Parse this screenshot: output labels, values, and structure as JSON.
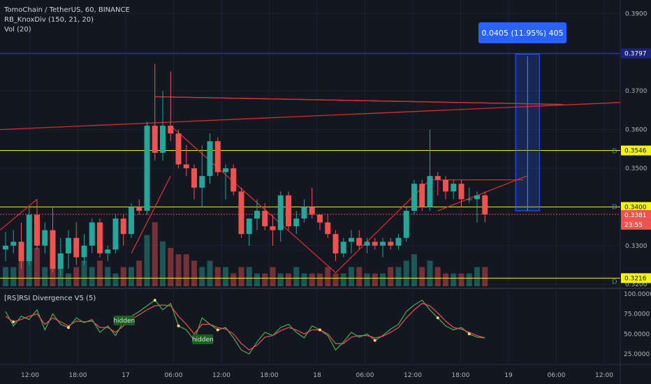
{
  "header": {
    "title": "TomoChain / TetherUS, 60, BINANCE",
    "indicators": [
      "RB_KnoxDiv (150, 21, 20)",
      "Vol (20)"
    ]
  },
  "rsi_panel": {
    "title": "[RS]RSI Divergence V5 (5)",
    "hidden_labels": [
      "hidden",
      "hidden"
    ]
  },
  "measure_box": "0.0405 (11.95%) 405",
  "price_axis": {
    "ticks": [
      "0.3900",
      "0.3700",
      "0.3600",
      "0.3500",
      "0.3300",
      "0.3200"
    ],
    "tags": [
      {
        "text": "0.3797",
        "color": "#1a237e"
      },
      {
        "text": "0.3546",
        "color": "#f5f50a"
      },
      {
        "text": "0.3400",
        "color": "#f5f50a"
      },
      {
        "text": "0.3381",
        "color": "#ef5350"
      },
      {
        "text": "23:55",
        "color": "#ef5350"
      },
      {
        "text": "0.3216",
        "color": "#f5f50a"
      }
    ],
    "d_marker": "D"
  },
  "rsi_axis": {
    "ticks": [
      "100.0000",
      "75.0000",
      "50.0000",
      "25.0000"
    ]
  },
  "time_axis": [
    "12:00",
    "18:00",
    "17",
    "06:00",
    "12:00",
    "18:00",
    "18",
    "06:00",
    "12:00",
    "18:00",
    "19",
    "06:00",
    "12:00"
  ],
  "colors": {
    "up": "#26a69a",
    "down": "#ef5350",
    "background": "#131722",
    "level_line": "#f5f50a",
    "top_line": "#2a2ad1"
  },
  "chart_data": {
    "type": "candlestick",
    "title": "TomoChain / TetherUS, 60, BINANCE",
    "ohlc": [
      [
        0.329,
        0.3335,
        0.326,
        0.33
      ],
      [
        0.33,
        0.334,
        0.328,
        0.331
      ],
      [
        0.331,
        0.336,
        0.324,
        0.326
      ],
      [
        0.326,
        0.34,
        0.325,
        0.338
      ],
      [
        0.338,
        0.342,
        0.329,
        0.33
      ],
      [
        0.33,
        0.336,
        0.328,
        0.334
      ],
      [
        0.334,
        0.34,
        0.323,
        0.324
      ],
      [
        0.324,
        0.332,
        0.322,
        0.328
      ],
      [
        0.328,
        0.334,
        0.324,
        0.332
      ],
      [
        0.332,
        0.336,
        0.325,
        0.327
      ],
      [
        0.327,
        0.333,
        0.325,
        0.33
      ],
      [
        0.33,
        0.337,
        0.328,
        0.336
      ],
      [
        0.336,
        0.337,
        0.327,
        0.328
      ],
      [
        0.328,
        0.33,
        0.326,
        0.329
      ],
      [
        0.329,
        0.338,
        0.328,
        0.337
      ],
      [
        0.337,
        0.338,
        0.33,
        0.333
      ],
      [
        0.333,
        0.341,
        0.332,
        0.34
      ],
      [
        0.34,
        0.342,
        0.338,
        0.339
      ],
      [
        0.339,
        0.362,
        0.338,
        0.361
      ],
      [
        0.361,
        0.377,
        0.352,
        0.354
      ],
      [
        0.354,
        0.37,
        0.352,
        0.361
      ],
      [
        0.361,
        0.375,
        0.357,
        0.359
      ],
      [
        0.359,
        0.36,
        0.35,
        0.351
      ],
      [
        0.351,
        0.356,
        0.348,
        0.35
      ],
      [
        0.35,
        0.351,
        0.342,
        0.345
      ],
      [
        0.345,
        0.356,
        0.34,
        0.348
      ],
      [
        0.348,
        0.359,
        0.346,
        0.357
      ],
      [
        0.357,
        0.358,
        0.348,
        0.349
      ],
      [
        0.349,
        0.351,
        0.342,
        0.35
      ],
      [
        0.35,
        0.351,
        0.343,
        0.344
      ],
      [
        0.344,
        0.345,
        0.332,
        0.333
      ],
      [
        0.333,
        0.337,
        0.33,
        0.337
      ],
      [
        0.337,
        0.342,
        0.334,
        0.339
      ],
      [
        0.339,
        0.341,
        0.334,
        0.335
      ],
      [
        0.335,
        0.338,
        0.33,
        0.334
      ],
      [
        0.334,
        0.344,
        0.331,
        0.343
      ],
      [
        0.343,
        0.344,
        0.334,
        0.335
      ],
      [
        0.335,
        0.339,
        0.333,
        0.337
      ],
      [
        0.337,
        0.342,
        0.336,
        0.34
      ],
      [
        0.34,
        0.345,
        0.337,
        0.338
      ],
      [
        0.338,
        0.338,
        0.334,
        0.336
      ],
      [
        0.336,
        0.338,
        0.332,
        0.333
      ],
      [
        0.333,
        0.334,
        0.326,
        0.328
      ],
      [
        0.328,
        0.332,
        0.327,
        0.331
      ],
      [
        0.331,
        0.334,
        0.328,
        0.332
      ],
      [
        0.332,
        0.334,
        0.329,
        0.33
      ],
      [
        0.33,
        0.332,
        0.328,
        0.331
      ],
      [
        0.331,
        0.332,
        0.329,
        0.33
      ],
      [
        0.33,
        0.332,
        0.327,
        0.331
      ],
      [
        0.331,
        0.332,
        0.329,
        0.33
      ],
      [
        0.33,
        0.333,
        0.329,
        0.332
      ],
      [
        0.332,
        0.34,
        0.331,
        0.339
      ],
      [
        0.339,
        0.347,
        0.338,
        0.346
      ],
      [
        0.346,
        0.347,
        0.339,
        0.34
      ],
      [
        0.34,
        0.36,
        0.339,
        0.348
      ],
      [
        0.348,
        0.349,
        0.343,
        0.347
      ],
      [
        0.347,
        0.348,
        0.342,
        0.344
      ],
      [
        0.344,
        0.347,
        0.342,
        0.346
      ],
      [
        0.346,
        0.347,
        0.34,
        0.342
      ],
      [
        0.342,
        0.345,
        0.341,
        0.342
      ],
      [
        0.342,
        0.344,
        0.336,
        0.343
      ],
      [
        0.343,
        0.344,
        0.336,
        0.3381
      ]
    ],
    "volume": [
      3,
      3,
      4,
      5,
      6,
      3,
      4,
      5,
      2,
      3,
      4,
      3,
      4,
      3,
      2,
      3,
      3,
      4,
      8,
      10,
      7,
      6,
      5,
      5,
      4,
      3,
      4,
      3,
      3,
      2,
      3,
      3,
      2,
      2,
      3,
      2,
      2,
      3,
      2,
      2,
      2,
      3,
      2,
      2,
      3,
      3,
      2,
      2,
      2,
      3,
      3,
      4,
      5,
      3,
      4,
      3,
      2,
      2,
      2,
      2,
      3,
      3
    ],
    "levels": [
      0.3797,
      0.3546,
      0.34,
      0.3216
    ],
    "last_price": 0.3381,
    "ylim": [
      0.3195,
      0.3935
    ],
    "rsi_ylim": [
      12,
      105
    ],
    "rsi": [
      78,
      60,
      72,
      68,
      80,
      55,
      75,
      62,
      58,
      70,
      64,
      68,
      52,
      60,
      48,
      65,
      72,
      78,
      85,
      92,
      80,
      88,
      60,
      55,
      42,
      70,
      62,
      55,
      58,
      45,
      30,
      25,
      40,
      52,
      48,
      58,
      62,
      52,
      45,
      60,
      55,
      48,
      30,
      40,
      52,
      46,
      50,
      42,
      48,
      56,
      62,
      78,
      86,
      92,
      80,
      70,
      60,
      55,
      58,
      50,
      46,
      45
    ],
    "rsi_fast": [
      72,
      65,
      68,
      72,
      75,
      62,
      70,
      65,
      60,
      66,
      65,
      66,
      58,
      58,
      52,
      60,
      68,
      74,
      80,
      85,
      86,
      85,
      72,
      62,
      50,
      62,
      62,
      58,
      56,
      50,
      38,
      30,
      36,
      46,
      48,
      54,
      58,
      55,
      50,
      55,
      55,
      50,
      38,
      38,
      46,
      48,
      48,
      45,
      47,
      52,
      58,
      70,
      80,
      88,
      85,
      76,
      66,
      58,
      56,
      52,
      48,
      45
    ]
  }
}
